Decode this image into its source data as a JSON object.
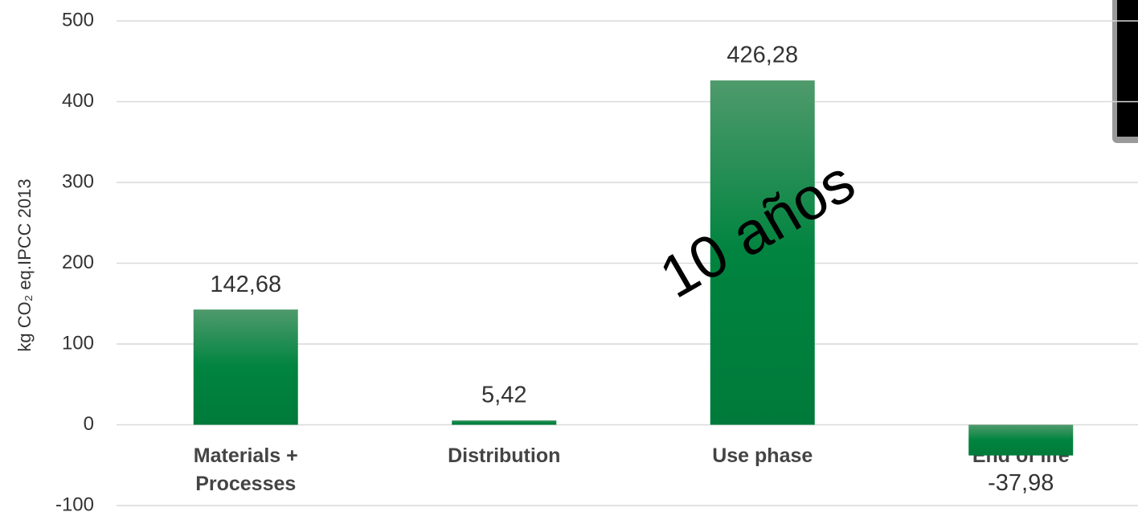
{
  "chart_data": {
    "type": "bar",
    "y_axis_label": "kg CO₂ eq.IPCC 2013",
    "annotation": "10 años",
    "categories": [
      "Materials +\nProcesses",
      "Distribution",
      "Use phase",
      "End of life"
    ],
    "values": [
      142.68,
      5.42,
      426.28,
      -37.98
    ],
    "value_labels": [
      "142,68",
      "5,42",
      "426,28",
      "-37,98"
    ],
    "color": "#00843f",
    "ylim": [
      -100,
      500
    ],
    "yticks": [
      -100,
      0,
      100,
      200,
      300,
      400,
      500
    ],
    "grid": true
  }
}
